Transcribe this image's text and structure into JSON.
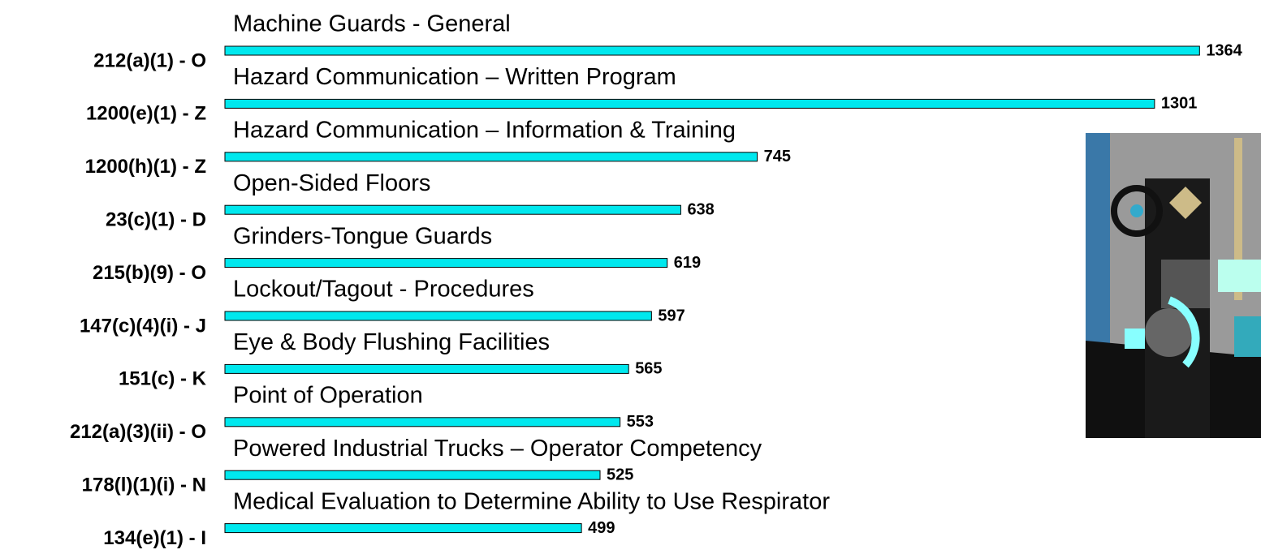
{
  "chart_data": {
    "type": "hbar",
    "categories": [
      "212(a)(1) - O",
      "1200(e)(1) - Z",
      "1200(h)(1) - Z",
      "23(c)(1) - D",
      "215(b)(9) - O",
      "147(c)(4)(i) - J",
      "151(c) - K",
      "212(a)(3)(ii) - O",
      "178(l)(1)(i) - N",
      "134(e)(1) - I"
    ],
    "descriptions": [
      "Machine Guards - General",
      "Hazard Communication – Written Program",
      "Hazard Communication – Information & Training",
      "Open-Sided Floors",
      "Grinders-Tongue Guards",
      "Lockout/Tagout - Procedures",
      "Eye & Body Flushing Facilities",
      "Point of Operation",
      "Powered Industrial Trucks – Operator Competency",
      "Medical Evaluation to Determine Ability to Use Respirator"
    ],
    "values": [
      1364,
      1301,
      745,
      638,
      619,
      597,
      565,
      553,
      525,
      499
    ],
    "color": "#00e8ee"
  }
}
